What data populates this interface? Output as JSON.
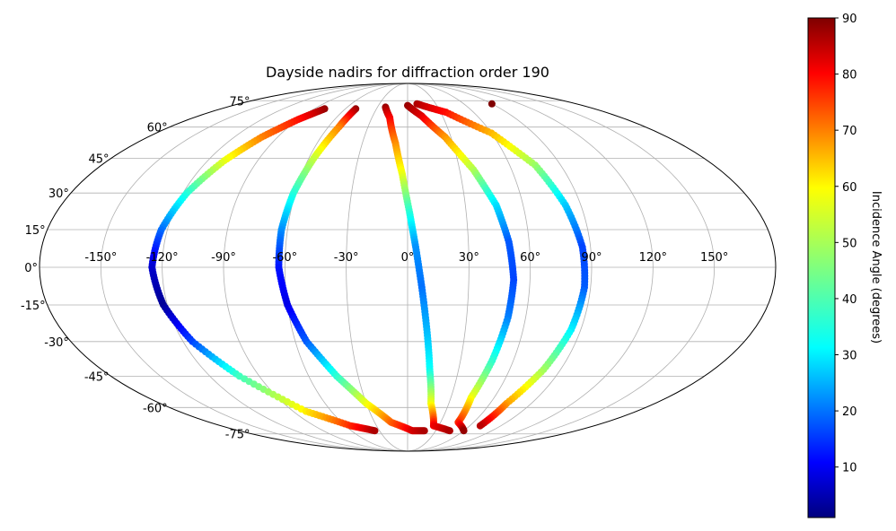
{
  "chart_data": {
    "type": "scatter",
    "projection": "mollweide",
    "title": "Dayside nadirs for diffraction order 190",
    "grid": true,
    "lon_ticks": [
      "-150°",
      "-120°",
      "-90°",
      "-60°",
      "-30°",
      "0°",
      "30°",
      "60°",
      "90°",
      "120°",
      "150°"
    ],
    "lat_ticks": [
      "75°",
      "60°",
      "45°",
      "30°",
      "15°",
      "0°",
      "-15°",
      "-30°",
      "-45°",
      "-60°",
      "-75°"
    ],
    "colorbar": {
      "label": "Incidence Angle (degrees)",
      "ticks": [
        "10",
        "20",
        "30",
        "40",
        "50",
        "60",
        "70",
        "80",
        "90"
      ],
      "range": [
        1,
        90
      ],
      "colormap": "jet",
      "placement": "right"
    },
    "series": [
      {
        "lon": -80,
        "lat": 70,
        "incidence": 88
      },
      {
        "lon": -90,
        "lat": 64,
        "incidence": 78
      },
      {
        "lon": -101,
        "lat": 55,
        "incidence": 68
      },
      {
        "lon": -110,
        "lat": 44,
        "incidence": 55
      },
      {
        "lon": -118,
        "lat": 30,
        "incidence": 38
      },
      {
        "lon": -123,
        "lat": 15,
        "incidence": 22
      },
      {
        "lon": -125,
        "lat": 0,
        "incidence": 8
      },
      {
        "lon": -122,
        "lat": -15,
        "incidence": 3
      },
      {
        "lon": -115,
        "lat": -30,
        "incidence": 18
      },
      {
        "lon": -102,
        "lat": -45,
        "incidence": 40
      },
      {
        "lon": -80,
        "lat": -62,
        "incidence": 58
      },
      {
        "lon": -55,
        "lat": -70,
        "incidence": 75
      },
      {
        "lon": -35,
        "lat": -73,
        "incidence": 86
      },
      {
        "lon": -50,
        "lat": 70,
        "incidence": 88
      },
      {
        "lon": -52,
        "lat": 60,
        "incidence": 68
      },
      {
        "lon": -57,
        "lat": 45,
        "incidence": 52
      },
      {
        "lon": -61,
        "lat": 30,
        "incidence": 38
      },
      {
        "lon": -63,
        "lat": 15,
        "incidence": 25
      },
      {
        "lon": -63,
        "lat": 0,
        "incidence": 14
      },
      {
        "lon": -60,
        "lat": -15,
        "incidence": 10
      },
      {
        "lon": -54,
        "lat": -30,
        "incidence": 20
      },
      {
        "lon": -43,
        "lat": -45,
        "incidence": 38
      },
      {
        "lon": -30,
        "lat": -58,
        "incidence": 55
      },
      {
        "lon": -15,
        "lat": -68,
        "incidence": 70
      },
      {
        "lon": 5,
        "lat": -73,
        "incidence": 82
      },
      {
        "lon": 18,
        "lat": -73,
        "incidence": 86
      },
      {
        "lon": -22,
        "lat": 71,
        "incidence": 88
      },
      {
        "lon": -15,
        "lat": 65,
        "incidence": 80
      },
      {
        "lon": -8,
        "lat": 52,
        "incidence": 67
      },
      {
        "lon": -3,
        "lat": 38,
        "incidence": 55
      },
      {
        "lon": 1,
        "lat": 22,
        "incidence": 38
      },
      {
        "lon": 4,
        "lat": 8,
        "incidence": 25
      },
      {
        "lon": 7,
        "lat": -8,
        "incidence": 22
      },
      {
        "lon": 10,
        "lat": -25,
        "incidence": 28
      },
      {
        "lon": 13,
        "lat": -42,
        "incidence": 35
      },
      {
        "lon": 17,
        "lat": -58,
        "incidence": 55
      },
      {
        "lon": 25,
        "lat": -70,
        "incidence": 80
      },
      {
        "lon": 45,
        "lat": -73,
        "incidence": 86
      },
      {
        "lon": 0,
        "lat": 72,
        "incidence": 88
      },
      {
        "lon": 12,
        "lat": 66,
        "incidence": 82
      },
      {
        "lon": 26,
        "lat": 55,
        "incidence": 66
      },
      {
        "lon": 38,
        "lat": 40,
        "incidence": 50
      },
      {
        "lon": 46,
        "lat": 25,
        "incidence": 32
      },
      {
        "lon": 50,
        "lat": 10,
        "incidence": 20
      },
      {
        "lon": 52,
        "lat": -5,
        "incidence": 18
      },
      {
        "lon": 51,
        "lat": -20,
        "incidence": 23
      },
      {
        "lon": 48,
        "lat": -38,
        "incidence": 38
      },
      {
        "lon": 44,
        "lat": -55,
        "incidence": 55
      },
      {
        "lon": 46,
        "lat": -68,
        "incidence": 75
      },
      {
        "lon": 60,
        "lat": -73,
        "incidence": 88
      },
      {
        "lon": 10,
        "lat": 73,
        "incidence": 86
      },
      {
        "lon": 35,
        "lat": 68,
        "incidence": 78
      },
      {
        "lon": 60,
        "lat": 57,
        "incidence": 63
      },
      {
        "lon": 75,
        "lat": 42,
        "incidence": 48
      },
      {
        "lon": 82,
        "lat": 25,
        "incidence": 30
      },
      {
        "lon": 86,
        "lat": 8,
        "incidence": 18
      },
      {
        "lon": 87,
        "lat": -8,
        "incidence": 20
      },
      {
        "lon": 85,
        "lat": -25,
        "incidence": 33
      },
      {
        "lon": 80,
        "lat": -42,
        "incidence": 48
      },
      {
        "lon": 72,
        "lat": -58,
        "incidence": 65
      },
      {
        "lon": 70,
        "lat": -70,
        "incidence": 85
      },
      {
        "lon": 90,
        "lat": 73,
        "incidence": 90
      }
    ]
  }
}
